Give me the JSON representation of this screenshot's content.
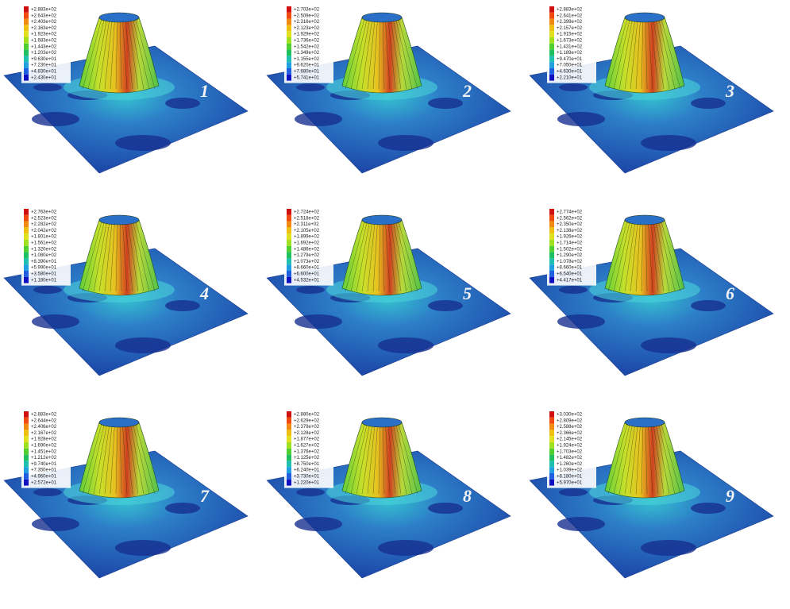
{
  "panels": [
    {
      "label": "1",
      "legend": [
        "+2.883e+02",
        "+2.643e+02",
        "+2.403e+02",
        "+2.163e+02",
        "+1.923e+02",
        "+1.683e+02",
        "+1.443e+02",
        "+1.203e+02",
        "+9.630e+01",
        "+7.230e+01",
        "+4.830e+01",
        "+2.430e+01"
      ]
    },
    {
      "label": "2",
      "legend": [
        "+2.703e+02",
        "+2.509e+02",
        "+2.316e+02",
        "+2.123e+02",
        "+1.929e+02",
        "+1.736e+02",
        "+1.542e+02",
        "+1.349e+02",
        "+1.155e+02",
        "+9.620e+01",
        "+7.680e+01",
        "+5.741e+01"
      ]
    },
    {
      "label": "3",
      "legend": [
        "+2.883e+02",
        "+2.641e+02",
        "+2.399e+02",
        "+2.157e+02",
        "+1.915e+02",
        "+1.673e+02",
        "+1.431e+02",
        "+1.189e+02",
        "+9.470e+01",
        "+7.050e+01",
        "+4.630e+01",
        "+2.210e+01"
      ]
    },
    {
      "label": "4",
      "legend": [
        "+2.763e+02",
        "+2.523e+02",
        "+2.282e+02",
        "+2.042e+02",
        "+1.801e+02",
        "+1.561e+02",
        "+1.320e+02",
        "+1.080e+02",
        "+8.390e+01",
        "+5.990e+01",
        "+3.580e+01",
        "+1.180e+01"
      ]
    },
    {
      "label": "5",
      "legend": [
        "+2.724e+02",
        "+2.518e+02",
        "+2.311e+02",
        "+2.105e+02",
        "+1.899e+02",
        "+1.692e+02",
        "+1.486e+02",
        "+1.279e+02",
        "+1.073e+02",
        "+8.660e+01",
        "+6.600e+01",
        "+4.532e+01"
      ]
    },
    {
      "label": "6",
      "legend": [
        "+2.774e+02",
        "+2.562e+02",
        "+2.350e+02",
        "+2.138e+02",
        "+1.926e+02",
        "+1.714e+02",
        "+1.502e+02",
        "+1.290e+02",
        "+1.078e+02",
        "+8.660e+01",
        "+6.540e+01",
        "+4.417e+01"
      ]
    },
    {
      "label": "7",
      "legend": [
        "+2.883e+02",
        "+2.644e+02",
        "+2.406e+02",
        "+2.167e+02",
        "+1.928e+02",
        "+1.690e+02",
        "+1.451e+02",
        "+1.212e+02",
        "+9.740e+01",
        "+7.350e+01",
        "+4.960e+01",
        "+2.572e+01"
      ]
    },
    {
      "label": "8",
      "legend": [
        "+2.880e+02",
        "+2.629e+02",
        "+2.379e+02",
        "+2.128e+02",
        "+1.877e+02",
        "+1.627e+02",
        "+1.376e+02",
        "+1.125e+02",
        "+8.750e+01",
        "+6.240e+01",
        "+3.730e+01",
        "+1.220e+01"
      ]
    },
    {
      "label": "9",
      "legend": [
        "+3.030e+02",
        "+2.809e+02",
        "+2.588e+02",
        "+2.366e+02",
        "+2.145e+02",
        "+1.924e+02",
        "+1.703e+02",
        "+1.482e+02",
        "+1.260e+02",
        "+1.039e+02",
        "+8.180e+01",
        "+5.970e+01"
      ]
    }
  ]
}
